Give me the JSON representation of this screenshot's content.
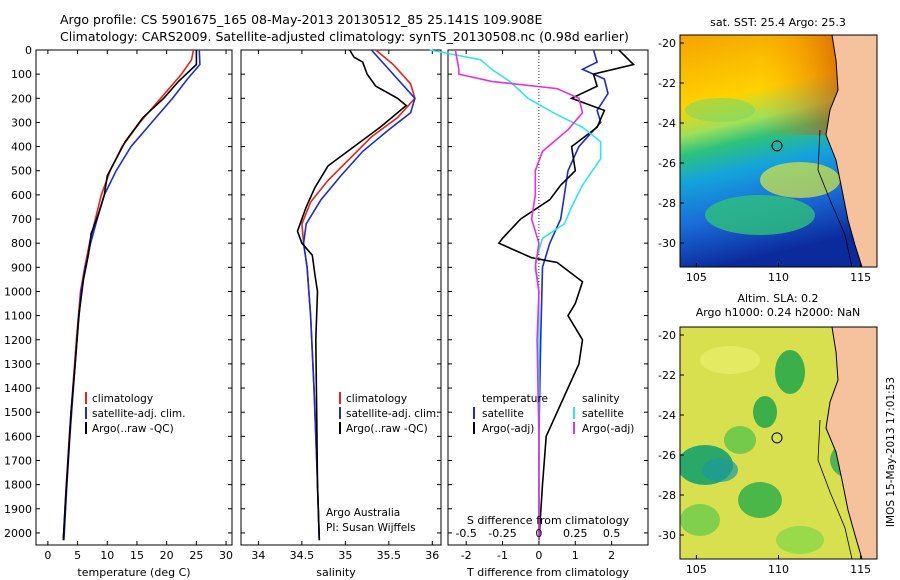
{
  "title_line1": "Argo profile: CS 5901675_165 08-May-2013 20130512_85 25.141S 109.908E",
  "title_line2": "Climatology: CARS2009. Satellite-adjusted climatology: synTS_20130508.nc (0.98d earlier)",
  "side_label": "IMOS 15-May-2013 17:01:53",
  "colors": {
    "clim": "#e8231a",
    "sat": "#1a2bd8",
    "argo": "#000000",
    "cyan": "#2ee6f0",
    "magenta": "#e52fe0",
    "coast": "#f6c29e"
  },
  "chart_data": [
    {
      "type": "line",
      "xlabel": "temperature (deg C)",
      "xlim": [
        -2,
        31
      ],
      "ylim": [
        2050,
        0
      ],
      "xticks": [
        0,
        5,
        10,
        15,
        20,
        25,
        30
      ],
      "yticks": [
        0,
        100,
        200,
        300,
        400,
        500,
        600,
        700,
        800,
        900,
        1000,
        1100,
        1200,
        1300,
        1400,
        1500,
        1600,
        1700,
        1800,
        1900,
        2000
      ],
      "legend": [
        "climatology",
        "satellite-adj. clim.",
        "Argo(..raw -QC)"
      ],
      "series": [
        {
          "name": "climatology",
          "color": "#e8231a",
          "points": [
            [
              24.5,
              0
            ],
            [
              24.2,
              40
            ],
            [
              22.5,
              100
            ],
            [
              19,
              200
            ],
            [
              15.5,
              300
            ],
            [
              12.5,
              400
            ],
            [
              10.5,
              500
            ],
            [
              9,
              600
            ],
            [
              8,
              700
            ],
            [
              7,
              800
            ],
            [
              6.2,
              900
            ],
            [
              5.5,
              1000
            ],
            [
              4.8,
              1200
            ],
            [
              4.2,
              1400
            ],
            [
              3.6,
              1600
            ],
            [
              3.1,
              1800
            ],
            [
              2.6,
              2030
            ]
          ]
        },
        {
          "name": "satellite-adj. clim.",
          "color": "#1a2bd8",
          "points": [
            [
              25.5,
              0
            ],
            [
              25.6,
              60
            ],
            [
              23.5,
              120
            ],
            [
              21,
              200
            ],
            [
              17.5,
              300
            ],
            [
              14,
              400
            ],
            [
              11.5,
              500
            ],
            [
              9.5,
              600
            ],
            [
              8.3,
              700
            ],
            [
              7.2,
              800
            ],
            [
              6.3,
              900
            ],
            [
              5.6,
              1000
            ],
            [
              4.9,
              1200
            ],
            [
              4.3,
              1400
            ],
            [
              3.7,
              1600
            ],
            [
              3.2,
              1800
            ],
            [
              2.7,
              2030
            ]
          ]
        },
        {
          "name": "Argo(..raw -QC)",
          "color": "#000000",
          "points": [
            [
              25,
              0
            ],
            [
              25,
              60
            ],
            [
              22,
              130
            ],
            [
              19.5,
              200
            ],
            [
              16,
              280
            ],
            [
              13,
              380
            ],
            [
              11.5,
              450
            ],
            [
              10,
              520
            ],
            [
              9.5,
              600
            ],
            [
              8.5,
              680
            ],
            [
              7.3,
              760
            ],
            [
              6.8,
              850
            ],
            [
              6,
              950
            ],
            [
              5.2,
              1100
            ],
            [
              4.6,
              1300
            ],
            [
              3.9,
              1500
            ],
            [
              3.4,
              1700
            ],
            [
              3,
              1850
            ],
            [
              2.6,
              2030
            ]
          ]
        }
      ]
    },
    {
      "type": "line",
      "xlabel": "salinity",
      "xlim": [
        33.8,
        36.1
      ],
      "ylim": [
        2050,
        0
      ],
      "xticks": [
        34,
        34.5,
        35,
        35.5,
        36
      ],
      "legend": [
        "climatology",
        "satellite-adj. clim.",
        "Argo(..raw -QC)"
      ],
      "annotations": [
        "Argo Australia",
        "PI: Susan Wijffels"
      ],
      "series": [
        {
          "name": "climatology",
          "color": "#e8231a",
          "points": [
            [
              35.35,
              0
            ],
            [
              35.55,
              60
            ],
            [
              35.75,
              140
            ],
            [
              35.8,
              200
            ],
            [
              35.6,
              280
            ],
            [
              35.3,
              360
            ],
            [
              35.05,
              450
            ],
            [
              34.8,
              540
            ],
            [
              34.6,
              630
            ],
            [
              34.5,
              720
            ],
            [
              34.52,
              800
            ],
            [
              34.56,
              900
            ],
            [
              34.6,
              1100
            ],
            [
              34.64,
              1400
            ],
            [
              34.67,
              1700
            ],
            [
              34.7,
              2030
            ]
          ]
        },
        {
          "name": "satellite-adj. clim.",
          "color": "#1a2bd8",
          "points": [
            [
              35.3,
              0
            ],
            [
              35.45,
              60
            ],
            [
              35.6,
              120
            ],
            [
              35.8,
              200
            ],
            [
              35.75,
              260
            ],
            [
              35.5,
              330
            ],
            [
              35.2,
              420
            ],
            [
              34.95,
              520
            ],
            [
              34.72,
              620
            ],
            [
              34.55,
              720
            ],
            [
              34.52,
              800
            ],
            [
              34.56,
              900
            ],
            [
              34.6,
              1100
            ],
            [
              34.64,
              1400
            ],
            [
              34.67,
              1700
            ],
            [
              34.7,
              2030
            ]
          ]
        },
        {
          "name": "Argo(..raw -QC)",
          "color": "#000000",
          "points": [
            [
              35.05,
              0
            ],
            [
              35.1,
              30
            ],
            [
              35.2,
              50
            ],
            [
              35.25,
              100
            ],
            [
              35.35,
              150
            ],
            [
              35.6,
              200
            ],
            [
              35.7,
              230
            ],
            [
              35.4,
              320
            ],
            [
              35.1,
              400
            ],
            [
              34.8,
              480
            ],
            [
              34.65,
              570
            ],
            [
              34.55,
              650
            ],
            [
              34.45,
              750
            ],
            [
              34.5,
              800
            ],
            [
              34.62,
              850
            ],
            [
              34.65,
              930
            ],
            [
              34.68,
              1000
            ],
            [
              34.66,
              1200
            ],
            [
              34.67,
              1500
            ],
            [
              34.68,
              1800
            ],
            [
              34.7,
              2030
            ]
          ]
        }
      ]
    },
    {
      "type": "line",
      "xlabel": "T difference from climatology",
      "subtitle": "S difference from climatology",
      "xlim": [
        -2.5,
        3.0
      ],
      "ylim": [
        2050,
        0
      ],
      "xticks": [
        -2,
        -1,
        0,
        1,
        2
      ],
      "top_ticks": [
        -0.5,
        -0.25,
        0,
        0.25,
        0.5
      ],
      "legend_headers": [
        "temperature",
        "salinity"
      ],
      "legend": [
        "satellite",
        "Argo(-adj)",
        "satellite",
        "Argo(-adj)"
      ],
      "series": [
        {
          "name": "temperature satellite",
          "color": "#1a2bd8",
          "points": [
            [
              1.5,
              0
            ],
            [
              1.6,
              50
            ],
            [
              1.2,
              80
            ],
            [
              1.8,
              120
            ],
            [
              1.9,
              180
            ],
            [
              1.6,
              250
            ],
            [
              1.7,
              300
            ],
            [
              1.1,
              400
            ],
            [
              0.8,
              500
            ],
            [
              0.7,
              600
            ],
            [
              0.6,
              700
            ],
            [
              0.3,
              800
            ],
            [
              0.1,
              900
            ],
            [
              0.05,
              1200
            ],
            [
              0,
              1600
            ],
            [
              0,
              2030
            ]
          ]
        },
        {
          "name": "temperature Argo(-adj)",
          "color": "#000000",
          "points": [
            [
              2.2,
              0
            ],
            [
              2.6,
              60
            ],
            [
              1.5,
              100
            ],
            [
              1.6,
              150
            ],
            [
              0.9,
              200
            ],
            [
              1.8,
              250
            ],
            [
              1.6,
              320
            ],
            [
              0.9,
              400
            ],
            [
              1.0,
              500
            ],
            [
              0.6,
              560
            ],
            [
              0.3,
              620
            ],
            [
              -0.5,
              700
            ],
            [
              -1,
              780
            ],
            [
              -1.1,
              800
            ],
            [
              -0.2,
              860
            ],
            [
              0.5,
              880
            ],
            [
              1.2,
              960
            ],
            [
              1.0,
              1050
            ],
            [
              0.8,
              1100
            ],
            [
              1.2,
              1200
            ],
            [
              1.1,
              1300
            ],
            [
              0.8,
              1400
            ],
            [
              0.5,
              1500
            ],
            [
              0.2,
              1600
            ],
            [
              0.1,
              1800
            ],
            [
              0,
              2030
            ]
          ]
        },
        {
          "name": "salinity satellite",
          "color": "#2ee6f0",
          "points": [
            [
              -3,
              0
            ],
            [
              -1.6,
              40
            ],
            [
              -1.3,
              80
            ],
            [
              -0.8,
              130
            ],
            [
              -0.3,
              200
            ],
            [
              0.4,
              260
            ],
            [
              1.2,
              320
            ],
            [
              1.7,
              380
            ],
            [
              1.7,
              450
            ],
            [
              1.2,
              560
            ],
            [
              0.9,
              650
            ],
            [
              0.7,
              720
            ],
            [
              0.1,
              780
            ],
            [
              -0.1,
              880
            ],
            [
              0,
              1000
            ],
            [
              0,
              1200
            ],
            [
              0,
              1600
            ],
            [
              0,
              2030
            ]
          ]
        },
        {
          "name": "salinity Argo(-adj)",
          "color": "#e52fe0",
          "points": [
            [
              -2.3,
              0
            ],
            [
              -2.2,
              80
            ],
            [
              -2.2,
              100
            ],
            [
              -1.3,
              130
            ],
            [
              0.5,
              160
            ],
            [
              1.1,
              200
            ],
            [
              1.2,
              260
            ],
            [
              0.8,
              330
            ],
            [
              0.1,
              420
            ],
            [
              -0.1,
              500
            ],
            [
              -0.1,
              600
            ],
            [
              -0.2,
              700
            ],
            [
              0,
              800
            ],
            [
              -0.1,
              900
            ],
            [
              0,
              1000
            ],
            [
              -0.05,
              1200
            ],
            [
              0,
              1600
            ],
            [
              0,
              2030
            ]
          ]
        }
      ]
    },
    {
      "type": "heatmap",
      "title": "sat. SST: 25.4  Argo: 25.3",
      "xlim": [
        104,
        116
      ],
      "ylim": [
        -31.2,
        -19.6
      ],
      "xticks": [
        105,
        110,
        115
      ],
      "yticks": [
        -20,
        -22,
        -24,
        -26,
        -28,
        -30
      ],
      "marker": [
        109.908,
        -25.141
      ]
    },
    {
      "type": "heatmap",
      "title_line1": "Altim. SLA: 0.2",
      "title_line2": "Argo h1000: 0.24  h2000: NaN",
      "xlim": [
        104,
        116
      ],
      "ylim": [
        -31.2,
        -19.6
      ],
      "xticks": [
        105,
        110,
        115
      ],
      "yticks": [
        -20,
        -22,
        -24,
        -26,
        -28,
        -30
      ],
      "marker": [
        109.908,
        -25.141
      ]
    }
  ]
}
